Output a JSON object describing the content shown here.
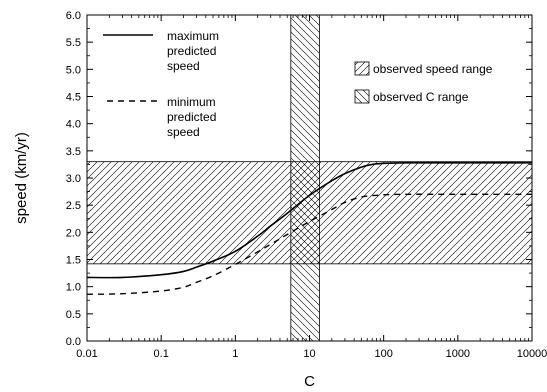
{
  "chart_data": {
    "type": "line",
    "xlabel": "C",
    "ylabel": "speed (km/yr)",
    "x_scale": "log",
    "xlim": [
      0.01,
      10000
    ],
    "ylim": [
      0.0,
      6.0
    ],
    "x_ticks": [
      0.01,
      0.1,
      1,
      10,
      100,
      1000,
      10000
    ],
    "x_tick_labels": [
      "0.01",
      "0.1",
      "1",
      "10",
      "100",
      "1000",
      "10000"
    ],
    "y_ticks": [
      0.0,
      0.5,
      1.0,
      1.5,
      2.0,
      2.5,
      3.0,
      3.5,
      4.0,
      4.5,
      5.0,
      5.5,
      6.0
    ],
    "y_tick_labels": [
      "0.0",
      "0.5",
      "1.0",
      "1.5",
      "2.0",
      "2.5",
      "3.0",
      "3.5",
      "4.0",
      "4.5",
      "5.0",
      "5.5",
      "6.0"
    ],
    "series": [
      {
        "name": "maximum predicted speed",
        "style": "solid",
        "x": [
          0.01,
          0.03,
          0.1,
          0.2,
          0.3,
          0.5,
          1,
          2,
          3,
          5,
          10,
          20,
          30,
          50,
          70,
          100,
          200,
          1000,
          10000
        ],
        "y": [
          1.17,
          1.17,
          1.22,
          1.28,
          1.36,
          1.47,
          1.65,
          1.93,
          2.12,
          2.35,
          2.68,
          2.95,
          3.08,
          3.2,
          3.25,
          3.27,
          3.28,
          3.28,
          3.28
        ]
      },
      {
        "name": "minimum predicted speed",
        "style": "dashed",
        "x": [
          0.01,
          0.03,
          0.1,
          0.2,
          0.3,
          0.5,
          1,
          2,
          3,
          5,
          10,
          20,
          30,
          50,
          100,
          200,
          1000,
          10000
        ],
        "y": [
          0.86,
          0.87,
          0.92,
          0.99,
          1.08,
          1.2,
          1.41,
          1.64,
          1.78,
          1.96,
          2.2,
          2.42,
          2.55,
          2.65,
          2.69,
          2.7,
          2.7,
          2.7
        ]
      }
    ],
    "observed_speed_range": {
      "name": "observed speed range",
      "y": [
        1.42,
        3.3
      ]
    },
    "observed_C_range": {
      "name": "observed C range",
      "x": [
        5.6,
        13.6
      ]
    },
    "legend": {
      "lines": [
        {
          "line1": "maximum",
          "line2": "predicted",
          "line3": "speed"
        },
        {
          "line1": "minimum",
          "line2": "predicted",
          "line3": "speed"
        }
      ],
      "placement": "top-left and middle-right"
    },
    "grid": false
  }
}
